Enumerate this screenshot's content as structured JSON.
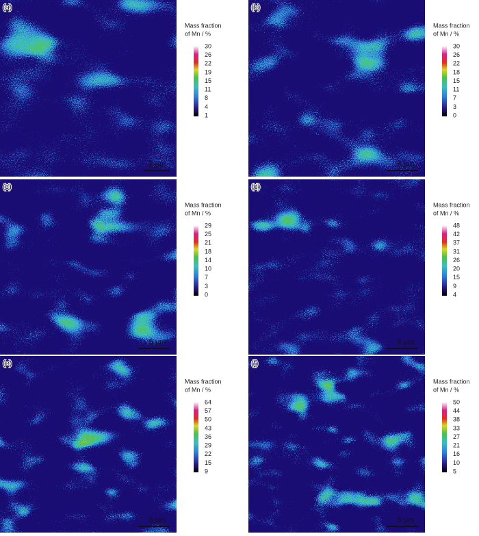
{
  "panels": [
    {
      "label": "(a)",
      "colorbar_title": [
        "Mass fraction",
        "of Mn / %"
      ],
      "ticks": [
        30,
        26,
        22,
        19,
        15,
        11,
        8,
        4,
        1
      ],
      "scale_bar": "2 μm"
    },
    {
      "label": "(b)",
      "colorbar_title": [
        "Mass fraction",
        "of Mn / %"
      ],
      "ticks": [
        30,
        26,
        22,
        18,
        15,
        11,
        7,
        3,
        0
      ],
      "scale_bar": "5 μm"
    },
    {
      "label": "(c)",
      "colorbar_title": [
        "Mass fraction",
        "of Mn / %"
      ],
      "ticks": [
        29,
        25,
        21,
        18,
        14,
        10,
        7,
        3,
        0
      ],
      "scale_bar": "5 μm"
    },
    {
      "label": "(d)",
      "colorbar_title": [
        "Mass fraction",
        "of Mn / %"
      ],
      "ticks": [
        48,
        42,
        37,
        31,
        26,
        20,
        15,
        9,
        4
      ],
      "scale_bar": "5 μm"
    },
    {
      "label": "(e)",
      "colorbar_title": [
        "Mass fraction",
        "of Mn / %"
      ],
      "ticks": [
        64,
        57,
        50,
        43,
        36,
        29,
        22,
        15,
        9
      ],
      "scale_bar": "5 μm"
    },
    {
      "label": "(f)",
      "colorbar_title": [
        "Mass fraction",
        "of Mn / %"
      ],
      "ticks": [
        50,
        44,
        38,
        33,
        27,
        21,
        16,
        10,
        5
      ],
      "scale_bar": "5 μm"
    }
  ]
}
